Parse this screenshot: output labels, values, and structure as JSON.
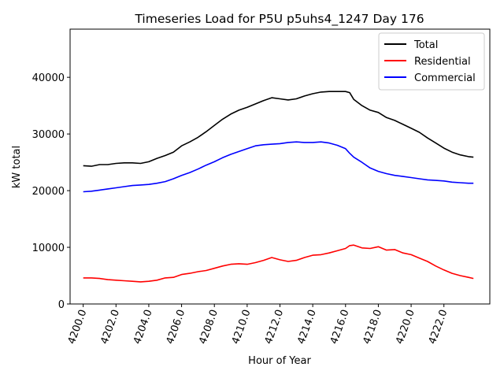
{
  "chart_data": {
    "type": "line",
    "title": "Timeseries Load for P5U p5uhs4_1247  Day 176",
    "xlabel": "Hour of Year",
    "ylabel": "kW total",
    "xlim": [
      4199.2,
      4224.8
    ],
    "ylim": [
      0,
      48500
    ],
    "xticks": [
      4200,
      4202,
      4204,
      4206,
      4208,
      4210,
      4212,
      4214,
      4216,
      4218,
      4220,
      4222
    ],
    "xtick_labels": [
      "4200.0",
      "4202.0",
      "4204.0",
      "4206.0",
      "4208.0",
      "4210.0",
      "4212.0",
      "4214.0",
      "4216.0",
      "4218.0",
      "4220.0",
      "4222.0"
    ],
    "yticks": [
      0,
      10000,
      20000,
      30000,
      40000
    ],
    "ytick_labels": [
      "0",
      "10000",
      "20000",
      "30000",
      "40000"
    ],
    "legend_position": "top-right",
    "series": [
      {
        "name": "Total",
        "color": "#000000",
        "x": [
          4200,
          4200.5,
          4201,
          4201.5,
          4202,
          4202.5,
          4203,
          4203.5,
          4204,
          4204.5,
          4205,
          4205.5,
          4206,
          4206.5,
          4207,
          4207.5,
          4208,
          4208.5,
          4209,
          4209.5,
          4210,
          4210.5,
          4211,
          4211.5,
          4212,
          4212.5,
          4213,
          4213.5,
          4214,
          4214.5,
          4215,
          4215.5,
          4216,
          4216.25,
          4216.5,
          4217,
          4217.5,
          4218,
          4218.5,
          4219,
          4219.5,
          4220,
          4220.5,
          4221,
          4221.5,
          4222,
          4222.5,
          4223,
          4223.5,
          4223.8
        ],
        "values": [
          24400,
          24300,
          24600,
          24600,
          24800,
          24900,
          24900,
          24800,
          25100,
          25700,
          26200,
          26800,
          27900,
          28600,
          29400,
          30400,
          31500,
          32600,
          33500,
          34200,
          34700,
          35300,
          35900,
          36400,
          36200,
          36000,
          36200,
          36700,
          37100,
          37400,
          37500,
          37500,
          37500,
          37300,
          36100,
          35000,
          34200,
          33800,
          32900,
          32400,
          31700,
          31000,
          30300,
          29300,
          28400,
          27500,
          26800,
          26300,
          26000,
          25900
        ]
      },
      {
        "name": "Residential",
        "color": "#ff0000",
        "x": [
          4200,
          4200.5,
          4201,
          4201.5,
          4202,
          4202.5,
          4203,
          4203.5,
          4204,
          4204.5,
          4205,
          4205.5,
          4206,
          4206.5,
          4207,
          4207.5,
          4208,
          4208.5,
          4209,
          4209.5,
          4210,
          4210.5,
          4211,
          4211.5,
          4212,
          4212.5,
          4213,
          4213.5,
          4214,
          4214.5,
          4215,
          4215.5,
          4216,
          4216.25,
          4216.5,
          4217,
          4217.5,
          4218,
          4218.5,
          4219,
          4219.5,
          4220,
          4220.5,
          4221,
          4221.5,
          4222,
          4222.5,
          4223,
          4223.5,
          4223.8
        ],
        "values": [
          4600,
          4600,
          4500,
          4300,
          4200,
          4100,
          4000,
          3900,
          4000,
          4200,
          4600,
          4700,
          5200,
          5400,
          5700,
          5900,
          6300,
          6700,
          7000,
          7100,
          7000,
          7300,
          7700,
          8200,
          7800,
          7500,
          7700,
          8200,
          8600,
          8700,
          9000,
          9400,
          9800,
          10300,
          10400,
          9900,
          9800,
          10100,
          9500,
          9600,
          9000,
          8700,
          8100,
          7500,
          6700,
          6000,
          5400,
          5000,
          4700,
          4500
        ]
      },
      {
        "name": "Commercial",
        "color": "#0000ff",
        "x": [
          4200,
          4200.5,
          4201,
          4201.5,
          4202,
          4202.5,
          4203,
          4203.5,
          4204,
          4204.5,
          4205,
          4205.5,
          4206,
          4206.5,
          4207,
          4207.5,
          4208,
          4208.5,
          4209,
          4209.5,
          4210,
          4210.5,
          4211,
          4211.5,
          4212,
          4212.5,
          4213,
          4213.5,
          4214,
          4214.5,
          4215,
          4215.5,
          4216,
          4216.25,
          4216.5,
          4217,
          4217.5,
          4218,
          4218.5,
          4219,
          4219.5,
          4220,
          4220.5,
          4221,
          4221.5,
          4222,
          4222.5,
          4223,
          4223.5,
          4223.8
        ],
        "values": [
          19800,
          19900,
          20100,
          20300,
          20500,
          20700,
          20900,
          21000,
          21100,
          21300,
          21600,
          22100,
          22700,
          23200,
          23800,
          24500,
          25100,
          25800,
          26400,
          26900,
          27400,
          27900,
          28100,
          28200,
          28300,
          28500,
          28600,
          28500,
          28500,
          28600,
          28400,
          28000,
          27400,
          26600,
          25900,
          25000,
          24000,
          23400,
          23000,
          22700,
          22500,
          22300,
          22100,
          21900,
          21800,
          21700,
          21500,
          21400,
          21300,
          21300
        ]
      }
    ]
  }
}
